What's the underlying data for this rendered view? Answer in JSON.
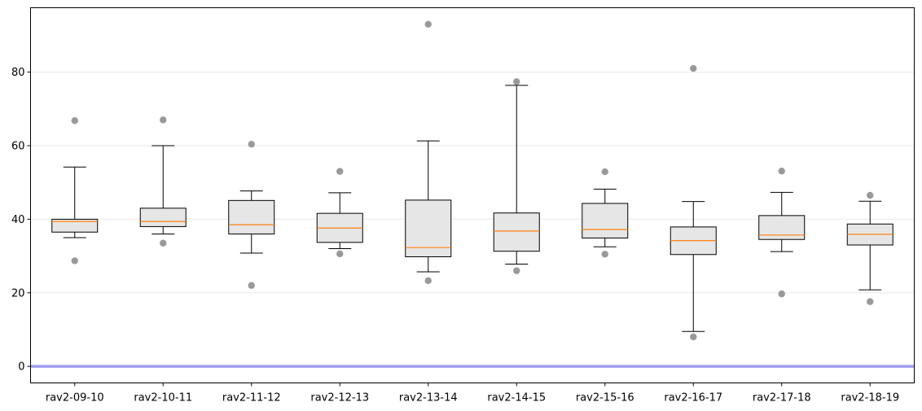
{
  "chart_data": {
    "type": "boxplot",
    "title": "",
    "xlabel": "",
    "ylabel": "",
    "categories": [
      "rav2-09-10",
      "rav2-10-11",
      "rav2-11-12",
      "rav2-12-13",
      "rav2-13-14",
      "rav2-14-15",
      "rav2-15-16",
      "rav2-16-17",
      "rav2-17-18",
      "rav2-18-19"
    ],
    "boxes": [
      {
        "whisker_low": 35.0,
        "q1": 36.5,
        "median": 39.4,
        "q3": 40.0,
        "whisker_high": 54.2,
        "outliers": [
          66.8,
          28.7
        ]
      },
      {
        "whisker_low": 36.0,
        "q1": 38.0,
        "median": 39.4,
        "q3": 43.0,
        "whisker_high": 60.0,
        "outliers": [
          67.0,
          33.5
        ]
      },
      {
        "whisker_low": 30.8,
        "q1": 36.0,
        "median": 38.5,
        "q3": 45.1,
        "whisker_high": 47.7,
        "outliers": [
          60.4,
          22.0
        ]
      },
      {
        "whisker_low": 32.0,
        "q1": 33.7,
        "median": 37.6,
        "q3": 41.6,
        "whisker_high": 47.2,
        "outliers": [
          53.0,
          30.6
        ]
      },
      {
        "whisker_low": 25.7,
        "q1": 29.8,
        "median": 32.3,
        "q3": 45.2,
        "whisker_high": 61.3,
        "outliers": [
          93.0,
          23.3
        ]
      },
      {
        "whisker_low": 27.8,
        "q1": 31.3,
        "median": 36.8,
        "q3": 41.7,
        "whisker_high": 76.4,
        "outliers": [
          77.4,
          26.0
        ]
      },
      {
        "whisker_low": 32.5,
        "q1": 34.9,
        "median": 37.2,
        "q3": 44.3,
        "whisker_high": 48.2,
        "outliers": [
          52.9,
          30.5
        ]
      },
      {
        "whisker_low": 9.5,
        "q1": 30.4,
        "median": 34.2,
        "q3": 37.9,
        "whisker_high": 44.8,
        "outliers": [
          81.0,
          8.0
        ]
      },
      {
        "whisker_low": 31.2,
        "q1": 34.5,
        "median": 35.7,
        "q3": 41.0,
        "whisker_high": 47.3,
        "outliers": [
          53.1,
          19.7
        ]
      },
      {
        "whisker_low": 20.8,
        "q1": 33.0,
        "median": 35.9,
        "q3": 38.7,
        "whisker_high": 44.9,
        "outliers": [
          46.5,
          17.6
        ]
      }
    ],
    "yticks": [
      "0",
      "20",
      "40",
      "60",
      "80"
    ],
    "ylim": [
      -4.5,
      97.5
    ],
    "grid": "y",
    "reference_line": {
      "y": 0,
      "color": "#a0a0f0"
    },
    "colors": {
      "box_fill": "#e6e6e6",
      "box_edge": "#000000",
      "median": "#ff7f0e",
      "outlier": "#999999",
      "grid": "#eeeeee"
    }
  }
}
